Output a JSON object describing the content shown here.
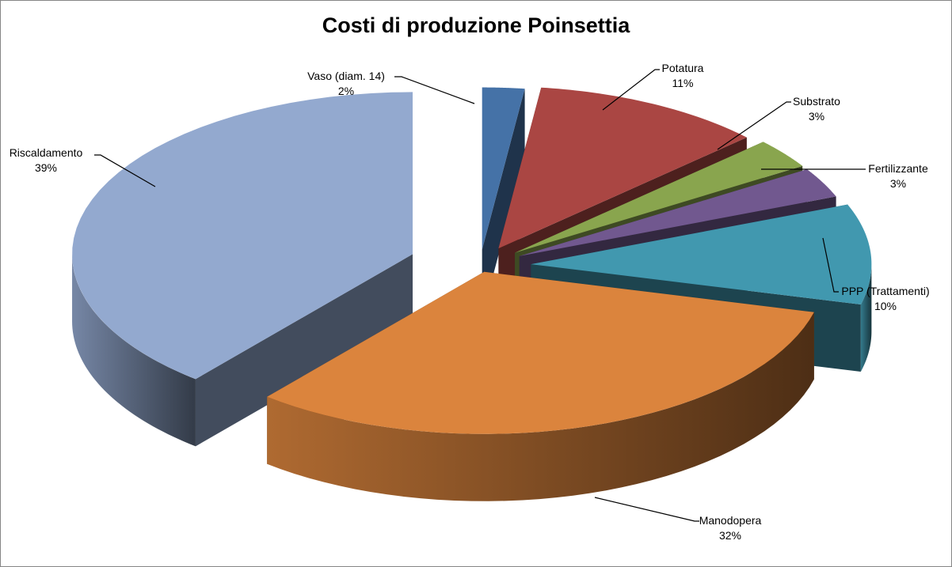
{
  "chart_data": {
    "type": "pie",
    "variant": "3d-exploded",
    "title": "Costi di produzione Poinsettia",
    "slices": [
      {
        "label": "Vaso (diam. 14)",
        "value": 2,
        "value_label": "2%",
        "color": "#4572a7"
      },
      {
        "label": "Potatura",
        "value": 11,
        "value_label": "11%",
        "color": "#aa4643"
      },
      {
        "label": "Substrato",
        "value": 3,
        "value_label": "3%",
        "color": "#89a54e"
      },
      {
        "label": "Fertilizzante",
        "value": 3,
        "value_label": "3%",
        "color": "#71588f"
      },
      {
        "label": "PPP (Trattamenti)",
        "value": 10,
        "value_label": "10%",
        "color": "#4198af"
      },
      {
        "label": "Manodopera",
        "value": 32,
        "value_label": "32%",
        "color": "#db843d"
      },
      {
        "label": "Riscaldamento",
        "value": 39,
        "value_label": "39%",
        "color": "#93a9cf"
      }
    ],
    "legend": "none",
    "data_labels": "outside with leader lines"
  }
}
